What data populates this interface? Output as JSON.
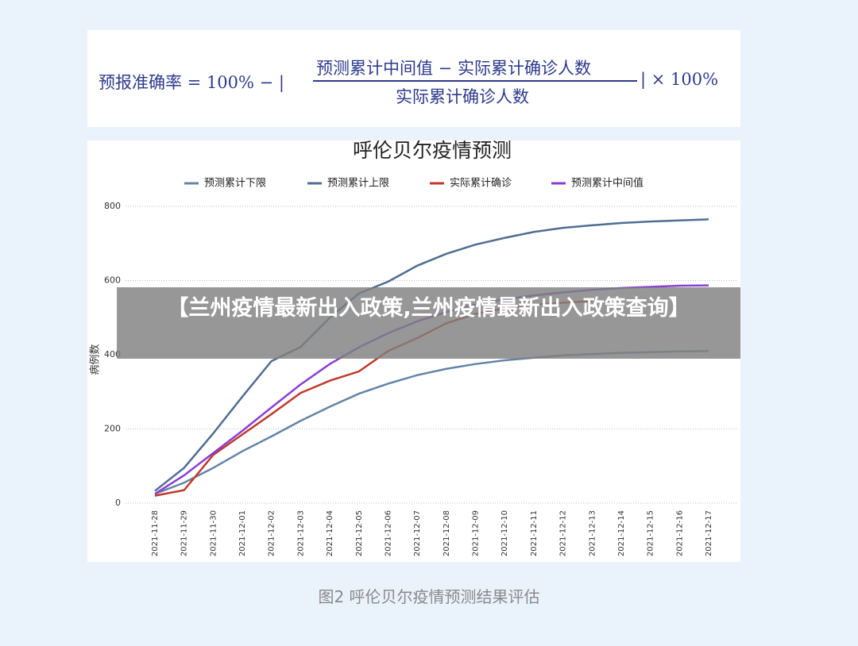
{
  "formula": {
    "left": "预报准确率 = 100% − |",
    "numerator": "预测累计中间值 − 实际累计确诊人数",
    "denominator": "实际累计确诊人数",
    "right": "| × 100%"
  },
  "chart_data": {
    "type": "line",
    "title": "呼伦贝尔疫情预测",
    "y_label": "病例数",
    "categories": [
      "2021-11-28",
      "2021-11-29",
      "2021-11-30",
      "2021-12-01",
      "2021-12-02",
      "2021-12-03",
      "2021-12-04",
      "2021-12-05",
      "2021-12-06",
      "2021-12-07",
      "2021-12-08",
      "2021-12-09",
      "2021-12-10",
      "2021-12-11",
      "2021-12-12",
      "2021-12-13",
      "2021-12-14",
      "2021-12-15",
      "2021-12-16",
      "2021-12-17"
    ],
    "series": [
      {
        "name": "预测累计下限",
        "color": "#6383a8",
        "values": [
          25,
          55,
          95,
          140,
          180,
          222,
          260,
          295,
          322,
          345,
          362,
          375,
          385,
          392,
          398,
          402,
          405,
          407,
          409,
          410
        ]
      },
      {
        "name": "预测累计上限",
        "color": "#4f6d93",
        "values": [
          33,
          95,
          188,
          287,
          383,
          421,
          500,
          565,
          597,
          640,
          672,
          697,
          715,
          731,
          742,
          749,
          755,
          759,
          762,
          765
        ]
      },
      {
        "name": "实际累计确诊",
        "color": "#c0392b",
        "values": [
          20,
          35,
          130,
          185,
          240,
          297,
          330,
          355,
          410,
          445,
          485,
          510,
          525,
          535,
          540,
          545,
          null,
          null,
          null,
          null
        ]
      },
      {
        "name": "预测累计中间值",
        "color": "#8a3ed6",
        "values": [
          25,
          75,
          135,
          195,
          258,
          320,
          375,
          420,
          458,
          490,
          515,
          535,
          550,
          560,
          568,
          575,
          580,
          583,
          586,
          587
        ]
      }
    ],
    "ylim": [
      0,
      800
    ],
    "yticks": [
      0,
      200,
      400,
      600,
      800
    ],
    "grid": true
  },
  "caption": "图2 呼伦贝尔疫情预测结果评估",
  "banner": "【兰州疫情最新出入政策,兰州疫情最新出入政策查询】"
}
